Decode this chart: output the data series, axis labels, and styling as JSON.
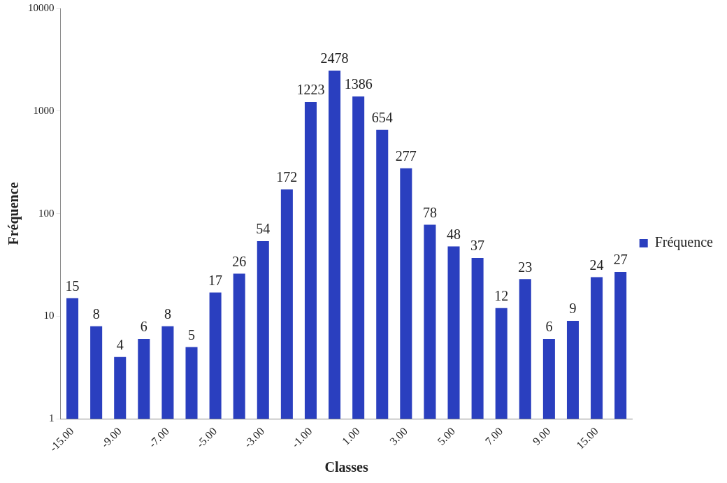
{
  "chart_data": {
    "type": "bar",
    "xlabel": "Classes",
    "ylabel": "Fréquence",
    "categories": [
      "-15.00",
      null,
      "-9.00",
      null,
      "-7.00",
      null,
      "-5.00",
      null,
      "-3.00",
      null,
      "-1.00",
      null,
      "1.00",
      null,
      "3.00",
      null,
      "5.00",
      null,
      "7.00",
      null,
      "9.00",
      null,
      "15.00",
      null
    ],
    "series": [
      {
        "name": "Fréquence",
        "color": "#2a3fbf",
        "values": [
          15,
          8,
          4,
          6,
          8,
          5,
          17,
          26,
          54,
          172,
          1223,
          2478,
          1386,
          654,
          277,
          78,
          48,
          37,
          12,
          23,
          6,
          9,
          24,
          27
        ]
      }
    ],
    "log": "y",
    "ylim": [
      1,
      10000
    ],
    "yticks": [
      1,
      10,
      100,
      1000,
      10000
    ],
    "grid": false,
    "legend": "right",
    "data_labels": true
  }
}
